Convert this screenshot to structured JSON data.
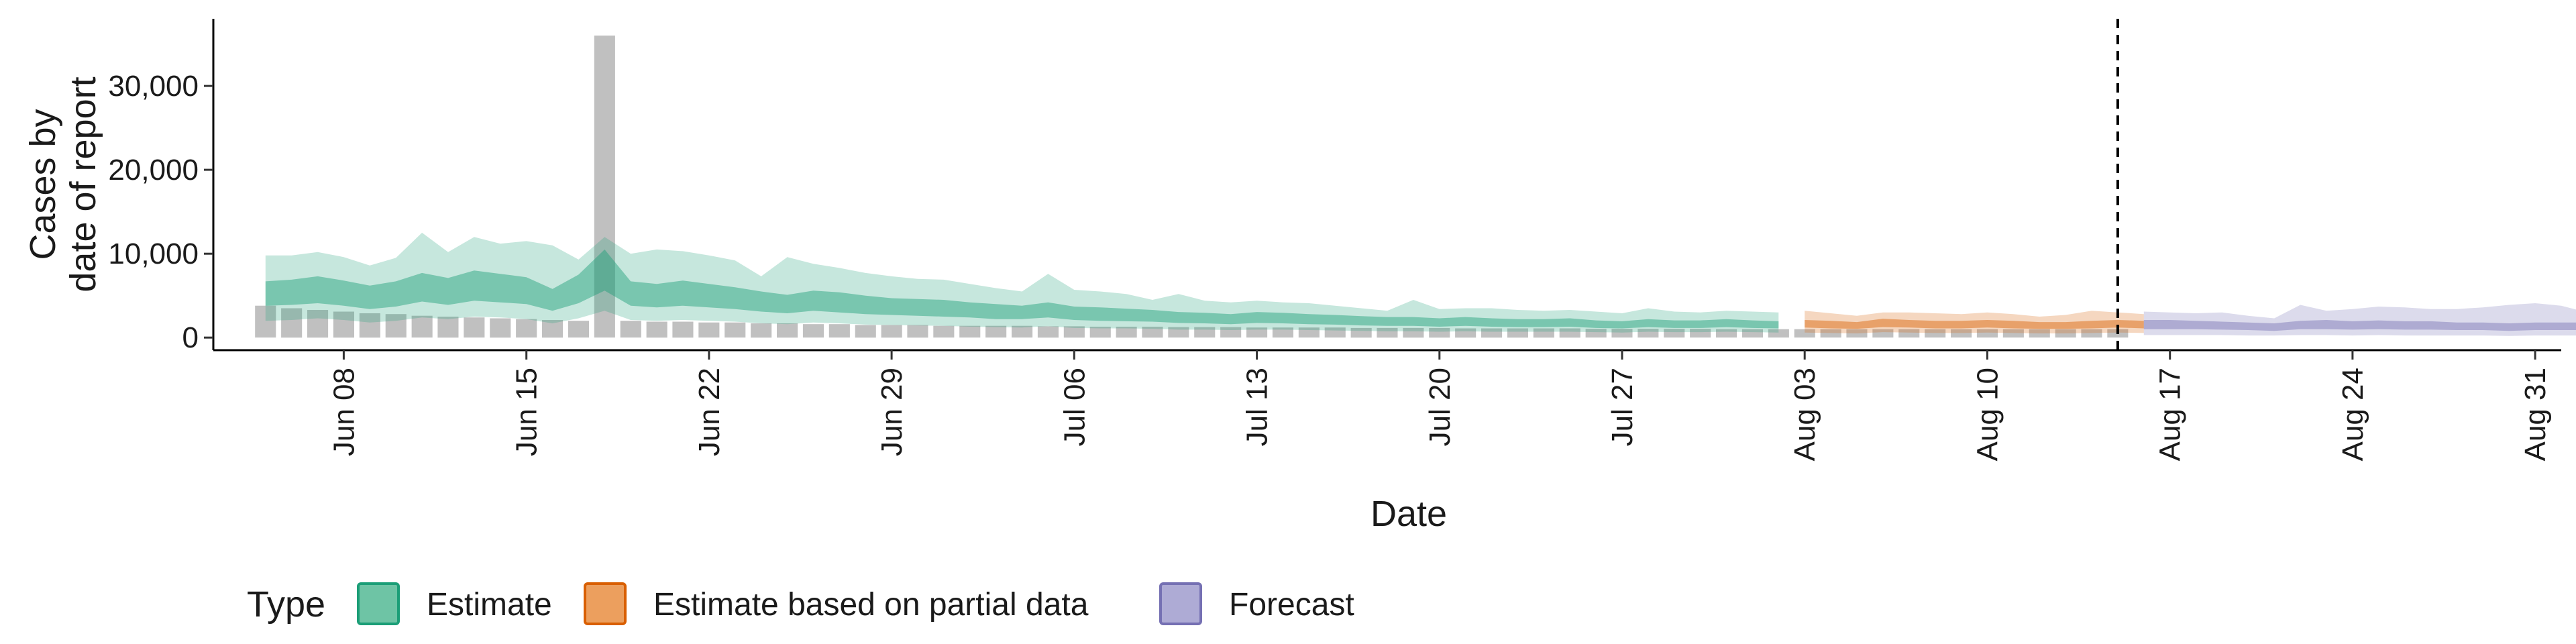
{
  "chart_data": {
    "type": "bar",
    "title": "",
    "xlabel": "Date",
    "ylabel_lines": [
      "Cases by",
      "date of report"
    ],
    "x_ticks": [
      "Jun 08",
      "Jun 15",
      "Jun 22",
      "Jun 29",
      "Jul 06",
      "Jul 13",
      "Jul 20",
      "Jul 27",
      "Aug 03",
      "Aug 10",
      "Aug 17",
      "Aug 24",
      "Aug 31"
    ],
    "x_range": [
      "2020-06-03",
      "2020-09-01"
    ],
    "y_ticks": [
      "0",
      "10,000",
      "20,000",
      "30,000"
    ],
    "y_range": [
      -1500,
      38000
    ],
    "forecast_start": "2020-08-15",
    "grid": false,
    "legend": {
      "title": "Type",
      "position": "bottom",
      "entries": [
        {
          "label": "Estimate",
          "fill": "#6ec4a5",
          "stroke": "#1b9e77"
        },
        {
          "label": "Estimate based on partial data",
          "fill": "#ec9f5e",
          "stroke": "#d95f02"
        },
        {
          "label": "Forecast",
          "fill": "#aeabd5",
          "stroke": "#7570b3"
        }
      ]
    },
    "colors": {
      "observed": "#bdbdbd",
      "estimate": "#1b9e77",
      "partial": "#d95f02",
      "forecast": "#7570b3",
      "forecast_line": "#000000"
    },
    "observed_cases": {
      "start": "2020-06-05",
      "values": [
        3800,
        3500,
        3300,
        3100,
        2900,
        2800,
        2600,
        2500,
        2400,
        2300,
        2200,
        2100,
        2000,
        36000,
        2000,
        1900,
        1900,
        1800,
        1800,
        1700,
        1700,
        1600,
        1600,
        1500,
        1500,
        1500,
        1400,
        1400,
        1400,
        1400,
        1350,
        1350,
        1300,
        1300,
        1300,
        1250,
        1250,
        1250,
        1200,
        1200,
        1200,
        1200,
        1150,
        1150,
        1150,
        1150,
        1100,
        1100,
        1100,
        1100,
        1100,
        1050,
        1050,
        1050,
        1050,
        1050,
        1000,
        1000,
        1000,
        1000,
        1000,
        1000,
        1000,
        1000,
        1000,
        1000,
        1000,
        1000,
        1000,
        1000,
        1000,
        1000
      ]
    },
    "series": [
      {
        "name": "Estimate",
        "start": "2020-06-05",
        "median": [
          5200,
          5400,
          5700,
          5300,
          4800,
          5200,
          6000,
          5500,
          6200,
          5900,
          5600,
          4500,
          5800,
          8000,
          5200,
          5000,
          5300,
          5000,
          4700,
          4300,
          4000,
          4400,
          4200,
          3900,
          3700,
          3600,
          3500,
          3300,
          3100,
          3000,
          3300,
          2900,
          2800,
          2700,
          2600,
          2400,
          2300,
          2200,
          2400,
          2300,
          2200,
          2100,
          2000,
          1900,
          1900,
          1800,
          1900,
          1800,
          1700,
          1700,
          1800,
          1600,
          1500,
          1700,
          1600,
          1600,
          1700,
          1600,
          1500
        ],
        "inner_lo": [
          3800,
          3900,
          4100,
          3800,
          3400,
          3700,
          4300,
          3900,
          4400,
          4200,
          4000,
          3200,
          4100,
          5600,
          3800,
          3600,
          3800,
          3600,
          3400,
          3100,
          2900,
          3200,
          3000,
          2800,
          2700,
          2600,
          2500,
          2400,
          2200,
          2200,
          2400,
          2100,
          2000,
          1950,
          1900,
          1750,
          1700,
          1600,
          1750,
          1700,
          1600,
          1550,
          1450,
          1400,
          1400,
          1300,
          1400,
          1300,
          1250,
          1250,
          1300,
          1150,
          1100,
          1250,
          1150,
          1150,
          1250,
          1150,
          1100
        ],
        "inner_hi": [
          6700,
          6900,
          7300,
          6800,
          6200,
          6700,
          7700,
          7100,
          8000,
          7600,
          7200,
          5800,
          7500,
          10500,
          6700,
          6400,
          6800,
          6400,
          6000,
          5500,
          5100,
          5600,
          5400,
          5000,
          4700,
          4600,
          4500,
          4200,
          4000,
          3800,
          4200,
          3700,
          3600,
          3450,
          3300,
          3050,
          2950,
          2800,
          3050,
          2950,
          2800,
          2700,
          2550,
          2450,
          2450,
          2300,
          2450,
          2300,
          2200,
          2200,
          2300,
          2050,
          1950,
          2200,
          2050,
          2050,
          2200,
          2050,
          1950
        ],
        "outer_lo": [
          2000,
          2100,
          2300,
          2100,
          1800,
          2000,
          2400,
          2200,
          2500,
          2400,
          2200,
          1700,
          2300,
          3200,
          2100,
          2000,
          2100,
          2000,
          1900,
          1700,
          1600,
          1800,
          1700,
          1550,
          1500,
          1450,
          1400,
          1300,
          1250,
          1200,
          1350,
          1150,
          1100,
          1100,
          1050,
          950,
          950,
          900,
          950,
          950,
          900,
          850,
          800,
          750,
          750,
          700,
          750,
          700,
          700,
          700,
          700,
          650,
          600,
          700,
          650,
          650,
          700,
          650,
          600
        ],
        "outer_hi": [
          9800,
          9800,
          10200,
          9600,
          8600,
          9500,
          12500,
          10200,
          12000,
          11200,
          11500,
          11000,
          9300,
          12000,
          10000,
          10500,
          10300,
          9800,
          9200,
          7300,
          9600,
          8800,
          8300,
          7700,
          7300,
          7000,
          6900,
          6400,
          5900,
          5500,
          7600,
          5700,
          5500,
          5200,
          4500,
          5200,
          4400,
          4200,
          4400,
          4200,
          4100,
          3800,
          3500,
          3200,
          4500,
          3400,
          3500,
          3500,
          3300,
          3200,
          3300,
          3100,
          2900,
          3500,
          3100,
          3000,
          3200,
          3100,
          3000
        ]
      },
      {
        "name": "Estimate based on partial data",
        "start": "2020-08-03",
        "median": [
          1600,
          1500,
          1400,
          1700,
          1600,
          1500,
          1500,
          1600,
          1500,
          1400,
          1400,
          1500,
          1600,
          1500
        ],
        "inner_lo": [
          1200,
          1100,
          1050,
          1250,
          1200,
          1100,
          1100,
          1200,
          1100,
          1050,
          1050,
          1100,
          1200,
          1100
        ],
        "inner_hi": [
          2100,
          2000,
          1850,
          2250,
          2100,
          2000,
          2000,
          2100,
          2000,
          1850,
          1850,
          2000,
          2100,
          2000
        ],
        "outer_lo": [
          600,
          550,
          500,
          650,
          600,
          550,
          550,
          600,
          550,
          500,
          500,
          550,
          600,
          550
        ],
        "outer_hi": [
          3200,
          2900,
          2600,
          3000,
          3000,
          2900,
          2800,
          3000,
          2800,
          2500,
          2700,
          3200,
          3000,
          2800
        ]
      },
      {
        "name": "Forecast",
        "start": "2020-08-16",
        "median": [
          1500,
          1500,
          1500,
          1400,
          1300,
          1200,
          1500,
          1500,
          1400,
          1500,
          1400,
          1400,
          1300,
          1300,
          1200,
          1300,
          1300,
          1300,
          1200,
          1200,
          1100,
          1100,
          1200,
          1200,
          1100
        ],
        "inner_lo": [
          1000,
          1000,
          1000,
          950,
          900,
          800,
          1000,
          1000,
          950,
          1000,
          950,
          950,
          900,
          900,
          800,
          900,
          900,
          900,
          800,
          800,
          750,
          750,
          800,
          800,
          750
        ],
        "inner_hi": [
          2100,
          2100,
          2000,
          1900,
          1800,
          1700,
          2000,
          2100,
          1950,
          2050,
          1950,
          1950,
          1800,
          1800,
          1700,
          1800,
          1800,
          1800,
          1700,
          1700,
          1600,
          1600,
          1700,
          1700,
          1600
        ],
        "outer_lo": [
          300,
          300,
          300,
          300,
          250,
          250,
          300,
          300,
          250,
          300,
          250,
          250,
          250,
          250,
          200,
          250,
          250,
          250,
          200,
          200,
          200,
          200,
          200,
          200,
          200
        ],
        "outer_hi": [
          3100,
          3000,
          2900,
          3000,
          2600,
          2300,
          3900,
          3200,
          3400,
          3700,
          3600,
          3400,
          3400,
          3600,
          3900,
          4100,
          3800,
          3000,
          3300,
          4500,
          5200,
          5000,
          5200,
          4800,
          5600
        ]
      }
    ]
  }
}
